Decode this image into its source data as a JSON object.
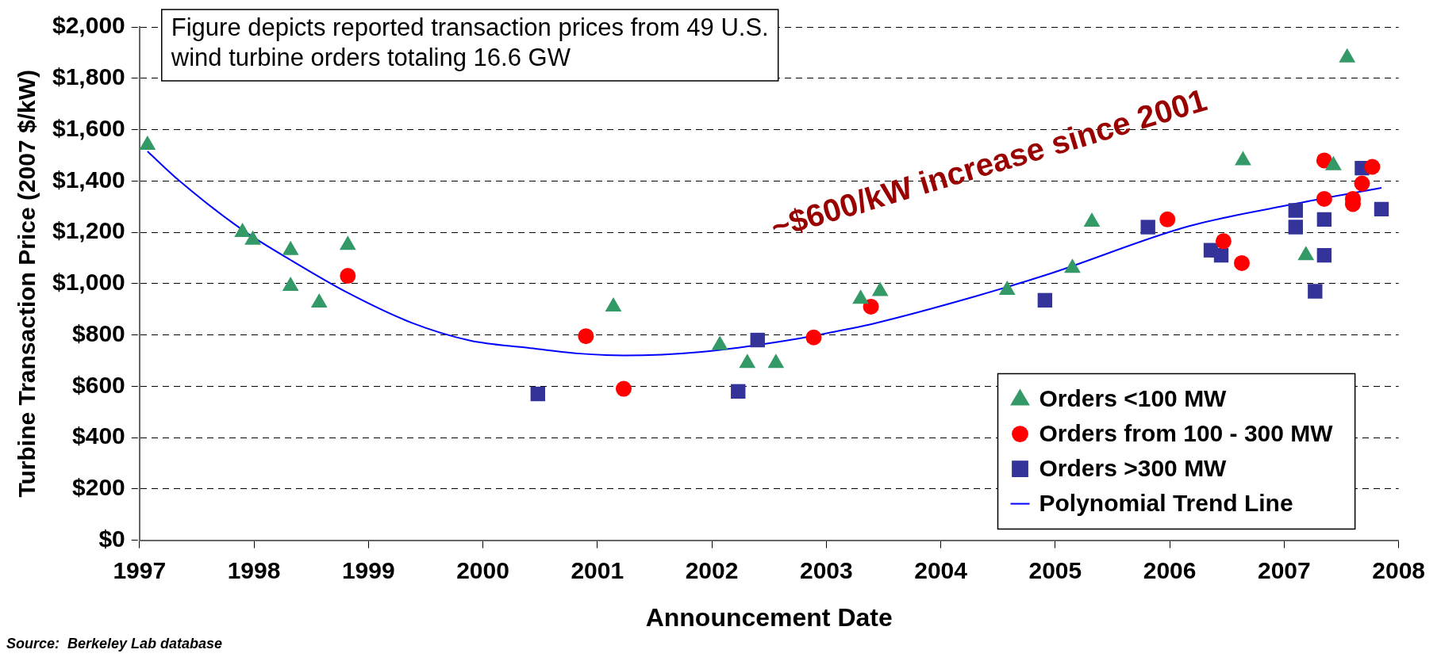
{
  "chart_data": {
    "type": "scatter",
    "xlabel": "Announcement Date",
    "ylabel": "Turbine Transaction Price (2007 $/kW)",
    "xlim": [
      1997,
      2008
    ],
    "xticks": [
      1997,
      1998,
      1999,
      2000,
      2001,
      2002,
      2003,
      2004,
      2005,
      2006,
      2007,
      2008
    ],
    "ylim": [
      0,
      2000
    ],
    "yticks": [
      {
        "value": 0,
        "label": "$0"
      },
      {
        "value": 200,
        "label": "$200"
      },
      {
        "value": 400,
        "label": "$400"
      },
      {
        "value": 600,
        "label": "$600"
      },
      {
        "value": 800,
        "label": "$800"
      },
      {
        "value": 1000,
        "label": "$1,000"
      },
      {
        "value": 1200,
        "label": "$1,200"
      },
      {
        "value": 1400,
        "label": "$1,400"
      },
      {
        "value": 1600,
        "label": "$1,600"
      },
      {
        "value": 1800,
        "label": "$1,800"
      },
      {
        "value": 2000,
        "label": "$2,000"
      }
    ],
    "grid": "y",
    "legend": "bottom right",
    "series": [
      {
        "name": "Orders <100 MW",
        "type": "scatter",
        "marker": "triangle",
        "color": "#339966",
        "x": [
          1997.07,
          1997.9,
          1997.99,
          1998.32,
          1998.32,
          1998.57,
          1998.82,
          2001.14,
          2002.07,
          2002.31,
          2002.56,
          2003.3,
          2003.47,
          2004.58,
          2005.15,
          2005.32,
          2006.64,
          2007.19,
          2007.43,
          2007.55
        ],
        "values": [
          1540,
          1200,
          1170,
          1130,
          990,
          925,
          1150,
          910,
          760,
          690,
          690,
          940,
          970,
          975,
          1060,
          1240,
          1480,
          1110,
          1460,
          1880
        ]
      },
      {
        "name": "Orders from 100 - 300 MW",
        "type": "scatter",
        "marker": "circle",
        "color": "#ff0000",
        "x": [
          1998.82,
          2000.9,
          2001.23,
          2002.89,
          2003.39,
          2005.98,
          2006.47,
          2006.63,
          2007.35,
          2007.35,
          2007.6,
          2007.6,
          2007.68,
          2007.77
        ],
        "values": [
          1030,
          795,
          590,
          790,
          910,
          1250,
          1165,
          1080,
          1480,
          1330,
          1330,
          1310,
          1390,
          1455
        ]
      },
      {
        "name": "Orders >300 MW",
        "type": "scatter",
        "marker": "square",
        "color": "#333399",
        "x": [
          2000.48,
          2002.23,
          2002.4,
          2004.91,
          2005.81,
          2006.36,
          2006.45,
          2007.1,
          2007.1,
          2007.27,
          2007.35,
          2007.35,
          2007.68,
          2007.85
        ],
        "values": [
          570,
          580,
          780,
          935,
          1220,
          1130,
          1110,
          1285,
          1220,
          970,
          1250,
          1110,
          1450,
          1290
        ]
      },
      {
        "name": "Polynomial Trend Line",
        "type": "line",
        "marker": "none",
        "line_style": "solid",
        "color": "#0000ff",
        "x": [
          1997.07,
          1997.35,
          1997.9,
          1998.32,
          1998.82,
          1999.38,
          1999.89,
          2000.39,
          2000.82,
          2001.23,
          2001.91,
          2002.65,
          2003.1,
          2003.43,
          2004.3,
          2004.95,
          2006.17,
          2007.1,
          2007.85
        ],
        "values": [
          1515,
          1400,
          1209,
          1092,
          964,
          847,
          778,
          750,
          728,
          720,
          734,
          778,
          815,
          846,
          950,
          1038,
          1224,
          1311,
          1373
        ]
      }
    ],
    "annotations": [
      "Figure depicts reported transaction prices from 49 U.S. wind turbine orders totaling 16.6 GW",
      "~$600/kW increase since 2001",
      "Source:  Berkeley Lab database"
    ]
  }
}
